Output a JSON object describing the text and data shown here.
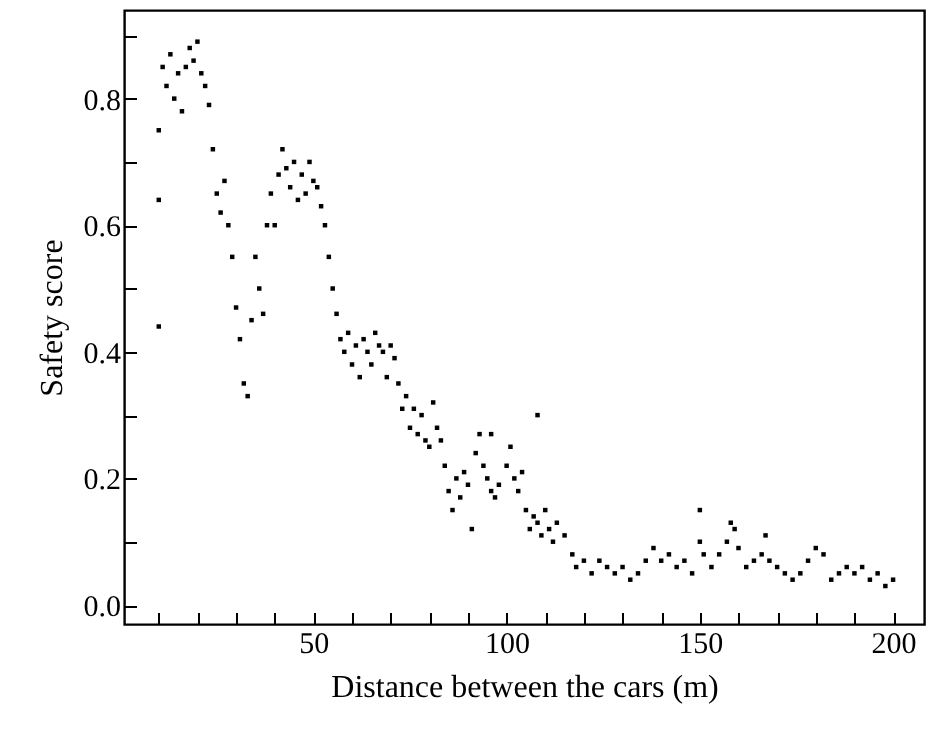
{
  "chart_data": {
    "type": "scatter",
    "xlabel": "Distance between the cars (m)",
    "ylabel": "Safety score",
    "xlim": [
      1,
      208
    ],
    "ylim": [
      -0.03,
      0.94
    ],
    "xticks": [
      {
        "value": 10,
        "label": null
      },
      {
        "value": 20,
        "label": null
      },
      {
        "value": 30,
        "label": null
      },
      {
        "value": 40,
        "label": null
      },
      50,
      {
        "value": 60,
        "label": null
      },
      {
        "value": 70,
        "label": null
      },
      {
        "value": 80,
        "label": null
      },
      {
        "value": 90,
        "label": null
      },
      100,
      {
        "value": 110,
        "label": null
      },
      {
        "value": 120,
        "label": null
      },
      {
        "value": 130,
        "label": null
      },
      {
        "value": 140,
        "label": null
      },
      150,
      {
        "value": 160,
        "label": null
      },
      {
        "value": 170,
        "label": null
      },
      {
        "value": 180,
        "label": null
      },
      {
        "value": 190,
        "label": null
      },
      200
    ],
    "yticks": [
      {
        "value": 0,
        "label": "0.0"
      },
      {
        "value": 0.1,
        "label": null
      },
      0.2,
      {
        "value": 0.3,
        "label": null
      },
      0.4,
      {
        "value": 0.5,
        "label": null
      },
      0.6,
      {
        "value": 0.7,
        "label": null
      },
      0.8,
      {
        "value": 0.9,
        "label": null
      }
    ],
    "grid": false,
    "marker": "square",
    "series": [
      {
        "color": "#000000",
        "x": [
          10,
          10,
          10,
          11,
          12,
          13,
          14,
          15,
          16,
          17,
          18,
          19,
          20,
          21,
          22,
          23,
          24,
          25,
          26,
          27,
          28,
          29,
          30,
          31,
          32,
          33,
          34,
          35,
          36,
          37,
          38,
          39,
          40,
          41,
          42,
          43,
          44,
          45,
          46,
          47,
          48,
          49,
          50,
          51,
          52,
          53,
          54,
          55,
          56,
          57,
          58,
          59,
          60,
          61,
          62,
          63,
          64,
          65,
          66,
          67,
          68,
          69,
          70,
          71,
          72,
          73,
          74,
          75,
          76,
          77,
          78,
          79,
          80,
          81,
          82,
          83,
          84,
          85,
          86,
          87,
          88,
          89,
          90,
          91,
          92,
          93,
          94,
          95,
          96,
          96,
          97,
          98,
          100,
          101,
          102,
          103,
          104,
          105,
          106,
          107,
          108,
          108,
          109,
          110,
          111,
          112,
          113,
          115,
          117,
          118,
          120,
          122,
          124,
          126,
          128,
          130,
          132,
          134,
          136,
          138,
          140,
          142,
          144,
          146,
          148,
          150,
          150,
          151,
          153,
          155,
          157,
          158,
          159,
          160,
          162,
          164,
          166,
          167,
          168,
          170,
          172,
          174,
          176,
          178,
          180,
          182,
          184,
          186,
          188,
          190,
          192,
          194,
          196,
          198,
          200
        ],
        "values": [
          0.44,
          0.64,
          0.75,
          0.85,
          0.82,
          0.87,
          0.8,
          0.84,
          0.78,
          0.85,
          0.88,
          0.86,
          0.89,
          0.84,
          0.82,
          0.79,
          0.72,
          0.65,
          0.62,
          0.67,
          0.6,
          0.55,
          0.47,
          0.42,
          0.35,
          0.33,
          0.45,
          0.55,
          0.5,
          0.46,
          0.6,
          0.65,
          0.6,
          0.68,
          0.72,
          0.69,
          0.66,
          0.7,
          0.64,
          0.68,
          0.65,
          0.7,
          0.67,
          0.66,
          0.63,
          0.6,
          0.55,
          0.5,
          0.46,
          0.42,
          0.4,
          0.43,
          0.38,
          0.41,
          0.36,
          0.42,
          0.4,
          0.38,
          0.43,
          0.41,
          0.4,
          0.36,
          0.41,
          0.39,
          0.35,
          0.31,
          0.33,
          0.28,
          0.31,
          0.27,
          0.3,
          0.26,
          0.25,
          0.32,
          0.28,
          0.26,
          0.22,
          0.18,
          0.15,
          0.2,
          0.17,
          0.21,
          0.19,
          0.12,
          0.24,
          0.27,
          0.22,
          0.2,
          0.18,
          0.27,
          0.17,
          0.19,
          0.22,
          0.25,
          0.2,
          0.18,
          0.21,
          0.15,
          0.12,
          0.14,
          0.13,
          0.3,
          0.11,
          0.15,
          0.12,
          0.1,
          0.13,
          0.11,
          0.08,
          0.06,
          0.07,
          0.05,
          0.07,
          0.06,
          0.05,
          0.06,
          0.04,
          0.05,
          0.07,
          0.09,
          0.07,
          0.08,
          0.06,
          0.07,
          0.05,
          0.1,
          0.15,
          0.08,
          0.06,
          0.08,
          0.1,
          0.13,
          0.12,
          0.09,
          0.06,
          0.07,
          0.08,
          0.11,
          0.07,
          0.06,
          0.05,
          0.04,
          0.05,
          0.07,
          0.09,
          0.08,
          0.04,
          0.05,
          0.06,
          0.05,
          0.06,
          0.04,
          0.05,
          0.03,
          0.04
        ]
      }
    ]
  }
}
